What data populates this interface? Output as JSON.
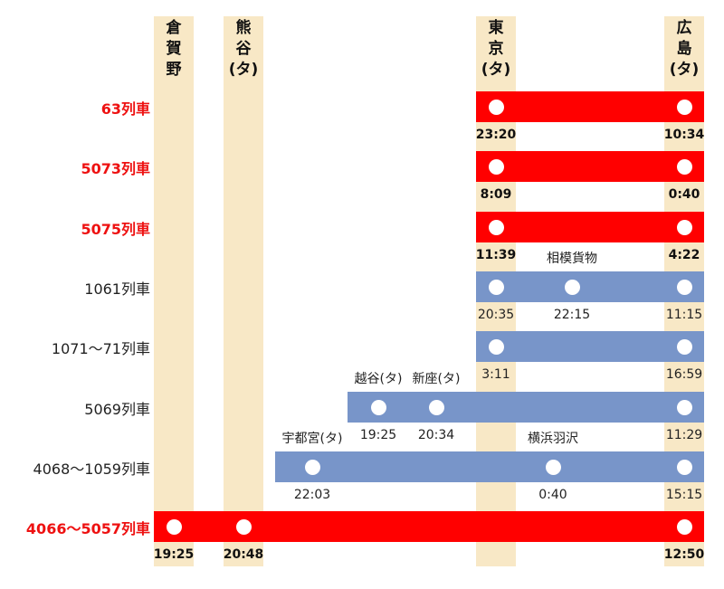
{
  "columns": [
    {
      "id": "kuragano",
      "name": "倉\n賀\n野"
    },
    {
      "id": "kumagaya",
      "name": "熊\n谷\n(タ)"
    },
    {
      "id": "tokyo",
      "name": "東\n京\n(タ)"
    },
    {
      "id": "hiroshima",
      "name": "広\n島\n(タ)"
    }
  ],
  "trains": [
    {
      "label": "63列車",
      "color": "red",
      "from": "tokyo",
      "to": "hiroshima",
      "stops": [
        {
          "col": "tokyo",
          "time": "23:20"
        },
        {
          "col": "hiroshima",
          "time": "10:34"
        }
      ]
    },
    {
      "label": "5073列車",
      "color": "red",
      "from": "tokyo",
      "to": "hiroshima",
      "stops": [
        {
          "col": "tokyo",
          "time": "8:09"
        },
        {
          "col": "hiroshima",
          "time": "0:40"
        }
      ]
    },
    {
      "label": "5075列車",
      "color": "red",
      "from": "tokyo",
      "to": "hiroshima",
      "stops": [
        {
          "col": "tokyo",
          "time": "11:39"
        },
        {
          "col": "hiroshima",
          "time": "4:22"
        }
      ]
    },
    {
      "label": "1061列車",
      "color": "blue",
      "from": "tokyo",
      "to": "hiroshima",
      "stops": [
        {
          "col": "tokyo",
          "time": "20:35"
        },
        {
          "station": "相模貨物",
          "time": "22:15"
        },
        {
          "col": "hiroshima",
          "time": "11:15"
        }
      ]
    },
    {
      "label": "1071～71列車",
      "color": "blue",
      "from": "tokyo",
      "to": "hiroshima",
      "stops": [
        {
          "col": "tokyo",
          "time": "3:11"
        },
        {
          "col": "hiroshima",
          "time": "16:59"
        }
      ]
    },
    {
      "label": "5069列車",
      "color": "blue",
      "from": "koshigaya",
      "to": "hiroshima",
      "stops": [
        {
          "station": "越谷(タ)",
          "time": "19:25"
        },
        {
          "station": "新座(タ)",
          "time": "20:34"
        },
        {
          "col": "hiroshima",
          "time": "11:29"
        }
      ]
    },
    {
      "label": "4068～1059列車",
      "color": "blue",
      "from": "utsunomiya",
      "to": "hiroshima",
      "stops": [
        {
          "station": "宇都宮(タ)",
          "time": "22:03"
        },
        {
          "station": "横浜羽沢",
          "time": "0:40"
        },
        {
          "col": "hiroshima",
          "time": "15:15"
        }
      ]
    },
    {
      "label": "4066～5057列車",
      "color": "red",
      "from": "kuragano",
      "to": "hiroshima",
      "stops": [
        {
          "col": "kuragano",
          "time": "19:25"
        },
        {
          "col": "kumagaya",
          "time": "20:48"
        },
        {
          "col": "hiroshima",
          "time": "12:50"
        }
      ]
    }
  ],
  "colors": {
    "red": "#ff0000",
    "blue": "#7895c9",
    "column": "#f8e8c6",
    "red_label": "#ee1111"
  }
}
